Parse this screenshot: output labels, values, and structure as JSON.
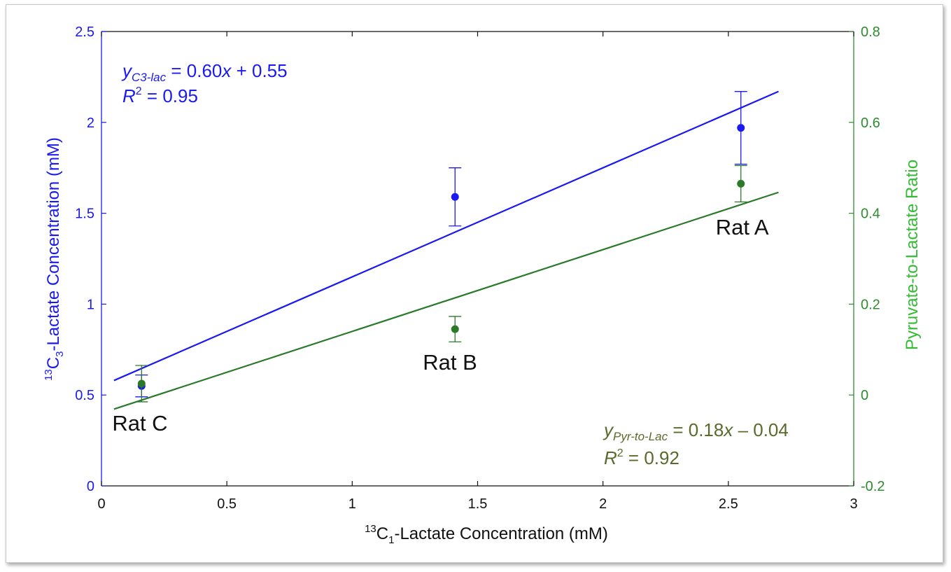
{
  "colors": {
    "left_axis": "#1a1af0",
    "right_axis": "#2e8b2e",
    "right_axis_label": "#33bb33",
    "green_series": "#2a7a2a",
    "green_fit_text": "#5a6a2a",
    "text": "#111111"
  },
  "chart_data": {
    "type": "scatter",
    "title": "",
    "xlabel": {
      "sup": "13",
      "base": "C",
      "sub": "1",
      "rest": "-Lactate Concentration (mM)"
    },
    "ylabel_left": {
      "sup": "13",
      "base": "C",
      "sub": "3",
      "rest": "-Lactate Concentration (mM)"
    },
    "ylabel_right": "Pyruvate-to-Lactate Ratio",
    "xlim": [
      0,
      3
    ],
    "ylim_left": [
      0,
      2.5
    ],
    "ylim_right": [
      -0.2,
      0.8
    ],
    "x_ticks": [
      0,
      0.5,
      1,
      1.5,
      2,
      2.5,
      3
    ],
    "x_tick_labels": [
      "0",
      "0.5",
      "1",
      "1.5",
      "2",
      "2.5",
      "3"
    ],
    "y_left_ticks": [
      0,
      0.5,
      1,
      1.5,
      2,
      2.5
    ],
    "y_left_tick_labels": [
      "0",
      "0.5",
      "1",
      "1.5",
      "2",
      "2.5"
    ],
    "y_right_ticks": [
      -0.2,
      0,
      0.2,
      0.4,
      0.6,
      0.8
    ],
    "y_right_tick_labels": [
      "-0.2",
      "0",
      "0.2",
      "0.4",
      "0.6",
      "0.8"
    ],
    "series": [
      {
        "name": "13C3-Lactate",
        "axis": "left",
        "color": "#1a1af0",
        "x": [
          0.16,
          1.41,
          2.55
        ],
        "y": [
          0.55,
          1.59,
          1.97
        ],
        "err": [
          0.06,
          0.16,
          0.2
        ],
        "fit": {
          "slope": 0.6,
          "intercept": 0.55,
          "x_range": [
            0.05,
            2.7
          ]
        }
      },
      {
        "name": "Pyruvate-to-Lactate Ratio",
        "axis": "right",
        "color": "#2a7a2a",
        "x": [
          0.16,
          1.41,
          2.55
        ],
        "y": [
          0.025,
          0.145,
          0.465
        ],
        "err": [
          0.04,
          0.028,
          0.04
        ],
        "fit": {
          "slope": 0.18,
          "intercept": -0.04,
          "x_range": [
            0.05,
            2.7
          ]
        }
      }
    ],
    "annotations": [
      {
        "label": "Rat A",
        "x": 2.55
      },
      {
        "label": "Rat B",
        "x": 1.41
      },
      {
        "label": "Rat C",
        "x": 0.16
      }
    ],
    "fit_text_blue": {
      "y_var": "y",
      "y_sub": "C3-lac",
      "eq_a": " = 0.60",
      "eq_x": "x",
      "eq_b": " + 0.55",
      "r_var": "R",
      "r_sup": "2",
      "r_val": " = 0.95"
    },
    "fit_text_green": {
      "y_var": "y",
      "y_sub": "Pyr-to-Lac",
      "eq_a": " = 0.18",
      "eq_x": "x",
      "eq_b": " – 0.04",
      "r_var": "R",
      "r_sup": "2",
      "r_val": " = 0.92"
    }
  }
}
